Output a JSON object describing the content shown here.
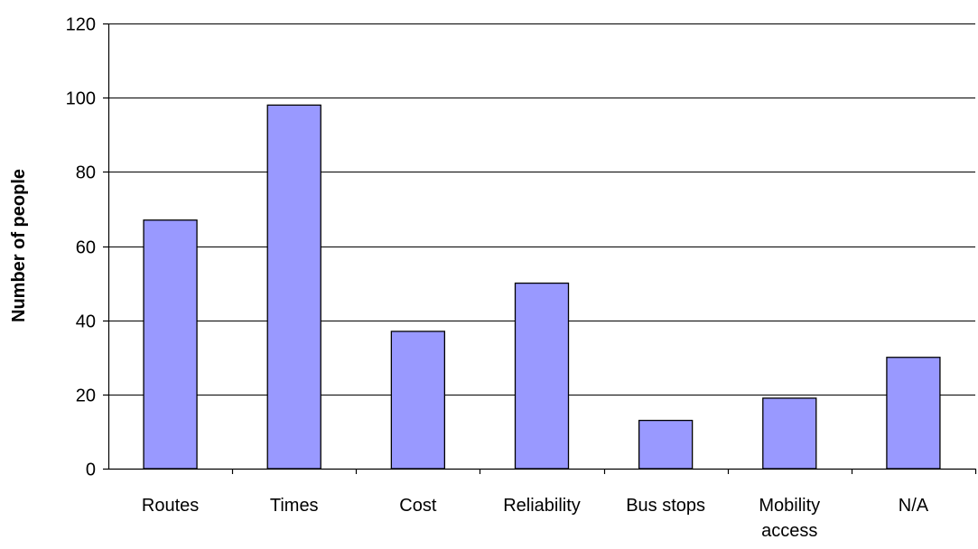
{
  "chart_data": {
    "type": "bar",
    "title": "",
    "xlabel": "",
    "ylabel": "Number of people",
    "categories": [
      "Routes",
      "Times",
      "Cost",
      "Reliability",
      "Bus stops",
      "Mobility access",
      "N/A"
    ],
    "category_lines": [
      [
        "Routes"
      ],
      [
        "Times"
      ],
      [
        "Cost"
      ],
      [
        "Reliability"
      ],
      [
        "Bus stops"
      ],
      [
        "Mobility",
        "access"
      ],
      [
        "N/A"
      ]
    ],
    "values": [
      67,
      98,
      37,
      50,
      13,
      19,
      30
    ],
    "ylim": [
      0,
      120
    ],
    "yticks": [
      0,
      20,
      40,
      60,
      80,
      100,
      120
    ],
    "ytick_labels": [
      "0",
      "20",
      "40",
      "60",
      "80",
      "100",
      "120"
    ],
    "grid": true,
    "legend": "none",
    "bar_color": "#9999ff"
  }
}
